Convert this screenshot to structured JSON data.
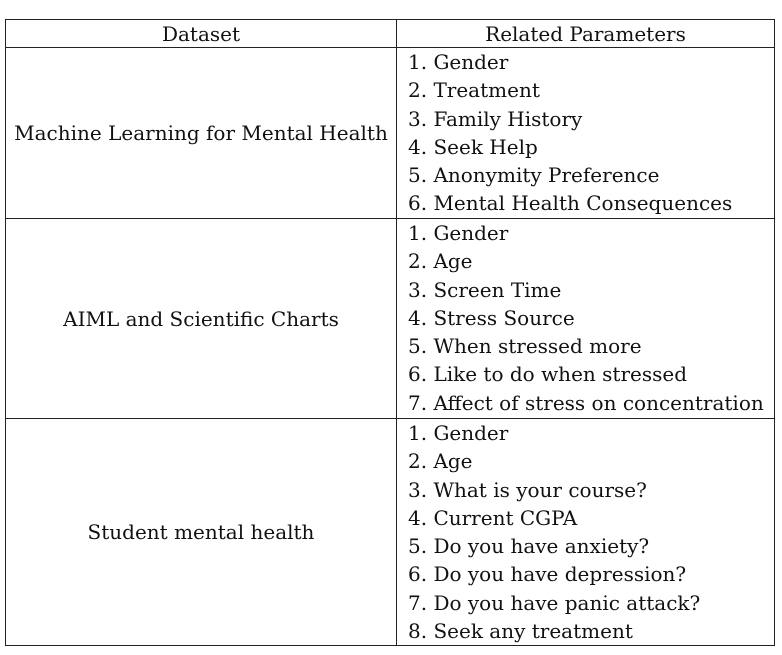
{
  "table": {
    "headers": [
      "Dataset",
      "Related Parameters"
    ],
    "rows": [
      {
        "dataset": "Machine Learning for Mental Health",
        "parameters": [
          "1. Gender",
          "2. Treatment",
          "3. Family History",
          "4. Seek Help",
          "5. Anonymity Preference",
          "6. Mental Health Consequences"
        ]
      },
      {
        "dataset": "AIML and Scientific Charts",
        "parameters": [
          "1. Gender",
          "2. Age",
          "3. Screen Time",
          "4. Stress Source",
          "5. When stressed more",
          "6. Like to do when stressed",
          "7. Affect of stress on concentration"
        ]
      },
      {
        "dataset": "Student mental health",
        "parameters": [
          "1. Gender",
          "2. Age",
          "3. What is your course?",
          "4. Current CGPA",
          "5. Do you have anxiety?",
          "6. Do you have depression?",
          "7. Do you have panic attack?",
          "8. Seek any treatment"
        ]
      }
    ]
  }
}
